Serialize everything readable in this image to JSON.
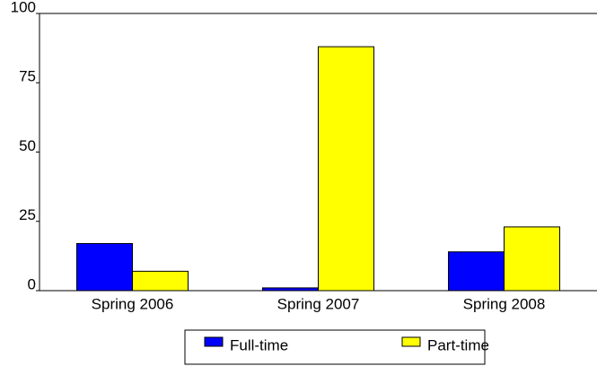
{
  "chart_data": {
    "type": "bar",
    "categories": [
      "Spring 2006",
      "Spring 2007",
      "Spring 2008"
    ],
    "series": [
      {
        "name": "Full-time",
        "color": "#0000ff",
        "values": [
          17,
          1,
          14
        ]
      },
      {
        "name": "Part-time",
        "color": "#ffff00",
        "values": [
          7,
          88,
          23
        ]
      }
    ],
    "ylim": [
      0,
      100
    ],
    "yticks": [
      0,
      25,
      50,
      75,
      100
    ],
    "grid": false,
    "legend": "bottom"
  }
}
